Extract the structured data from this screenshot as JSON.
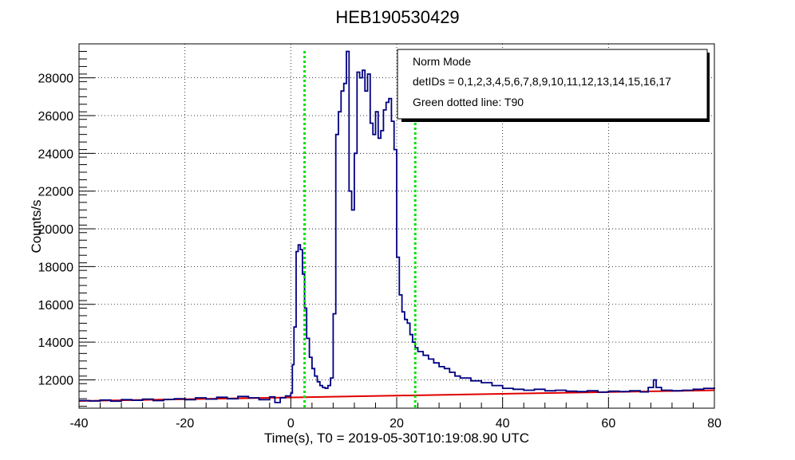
{
  "chart_data": {
    "type": "line",
    "title": "HEB190530429",
    "xlabel": "Time(s), T0 = 2019-05-30T10:19:08.90 UTC",
    "ylabel": "Counts/s",
    "xlim": [
      -40,
      80
    ],
    "ylim": [
      10500,
      29800
    ],
    "x_ticks": [
      -40,
      -20,
      0,
      20,
      40,
      60,
      80
    ],
    "y_ticks": [
      12000,
      14000,
      16000,
      18000,
      20000,
      22000,
      24000,
      26000,
      28000
    ],
    "grid": true,
    "legend_position": "top-right",
    "legend": {
      "lines": [
        "Norm Mode",
        "detIDs = 0,1,2,3,4,5,6,7,8,9,10,11,12,13,14,15,16,17",
        "Green dotted line: T90"
      ]
    },
    "colors": {
      "lightcurve": "#000080",
      "background": "#e00000",
      "t90": "#00e000"
    },
    "t90_lines": [
      2.6,
      23.5
    ],
    "background_fit": {
      "x": [
        -40,
        80
      ],
      "y": [
        10880,
        11450
      ]
    },
    "series": [
      {
        "style": "step",
        "points": [
          [
            -40,
            10900
          ],
          [
            -38,
            10880
          ],
          [
            -36,
            10930
          ],
          [
            -34,
            10870
          ],
          [
            -32,
            10950
          ],
          [
            -30,
            10920
          ],
          [
            -28,
            10980
          ],
          [
            -26,
            10900
          ],
          [
            -24,
            10960
          ],
          [
            -22,
            11000
          ],
          [
            -20,
            10950
          ],
          [
            -18,
            11050
          ],
          [
            -16,
            10980
          ],
          [
            -14,
            11080
          ],
          [
            -12,
            11000
          ],
          [
            -10,
            11120
          ],
          [
            -8,
            11050
          ],
          [
            -6,
            10950
          ],
          [
            -4,
            11100
          ],
          [
            -3,
            10800
          ],
          [
            -2,
            11050
          ],
          [
            -1,
            11150
          ],
          [
            0,
            11300
          ],
          [
            0.3,
            12800
          ],
          [
            0.6,
            14800
          ],
          [
            1.0,
            18800
          ],
          [
            1.4,
            19150
          ],
          [
            1.8,
            18900
          ],
          [
            2.2,
            17600
          ],
          [
            2.6,
            15800
          ],
          [
            3.0,
            14200
          ],
          [
            3.5,
            13200
          ],
          [
            4.0,
            12600
          ],
          [
            4.5,
            12200
          ],
          [
            5.0,
            11900
          ],
          [
            5.5,
            11700
          ],
          [
            6.0,
            11600
          ],
          [
            6.5,
            11550
          ],
          [
            7.0,
            11700
          ],
          [
            7.5,
            12100
          ],
          [
            8.0,
            15500
          ],
          [
            8.5,
            25000
          ],
          [
            9.0,
            26200
          ],
          [
            9.5,
            27300
          ],
          [
            10.0,
            27700
          ],
          [
            10.5,
            29400
          ],
          [
            11.0,
            22000
          ],
          [
            11.5,
            21000
          ],
          [
            12.0,
            24000
          ],
          [
            12.5,
            28300
          ],
          [
            13.0,
            28000
          ],
          [
            13.5,
            28400
          ],
          [
            14.0,
            27300
          ],
          [
            14.5,
            28200
          ],
          [
            15.0,
            25600
          ],
          [
            15.5,
            25000
          ],
          [
            16.0,
            26200
          ],
          [
            16.5,
            24800
          ],
          [
            17.0,
            25200
          ],
          [
            17.5,
            26300
          ],
          [
            18.0,
            26700
          ],
          [
            18.5,
            26900
          ],
          [
            19.0,
            25700
          ],
          [
            19.5,
            24200
          ],
          [
            20.0,
            18500
          ],
          [
            20.5,
            16500
          ],
          [
            21.0,
            15600
          ],
          [
            21.5,
            15200
          ],
          [
            22.0,
            15000
          ],
          [
            22.5,
            14400
          ],
          [
            23.0,
            14000
          ],
          [
            23.5,
            13700
          ],
          [
            24.0,
            13500
          ],
          [
            25.0,
            13300
          ],
          [
            26.0,
            13100
          ],
          [
            27.0,
            12900
          ],
          [
            28.0,
            12700
          ],
          [
            29.0,
            12600
          ],
          [
            30.0,
            12400
          ],
          [
            31.0,
            12200
          ],
          [
            32.0,
            12100
          ],
          [
            34.0,
            11950
          ],
          [
            36.0,
            11850
          ],
          [
            38.0,
            11700
          ],
          [
            40.0,
            11550
          ],
          [
            42.0,
            11500
          ],
          [
            44.0,
            11450
          ],
          [
            46.0,
            11500
          ],
          [
            48.0,
            11420
          ],
          [
            50.0,
            11450
          ],
          [
            52.0,
            11400
          ],
          [
            54.0,
            11380
          ],
          [
            56.0,
            11420
          ],
          [
            58.0,
            11350
          ],
          [
            60.0,
            11400
          ],
          [
            62.0,
            11380
          ],
          [
            64.0,
            11420
          ],
          [
            66.0,
            11360
          ],
          [
            67.5,
            11600
          ],
          [
            68.5,
            12000
          ],
          [
            69.0,
            11600
          ],
          [
            70.0,
            11450
          ],
          [
            72.0,
            11420
          ],
          [
            74.0,
            11450
          ],
          [
            76.0,
            11500
          ],
          [
            78.0,
            11550
          ],
          [
            80.0,
            11600
          ]
        ]
      }
    ]
  }
}
